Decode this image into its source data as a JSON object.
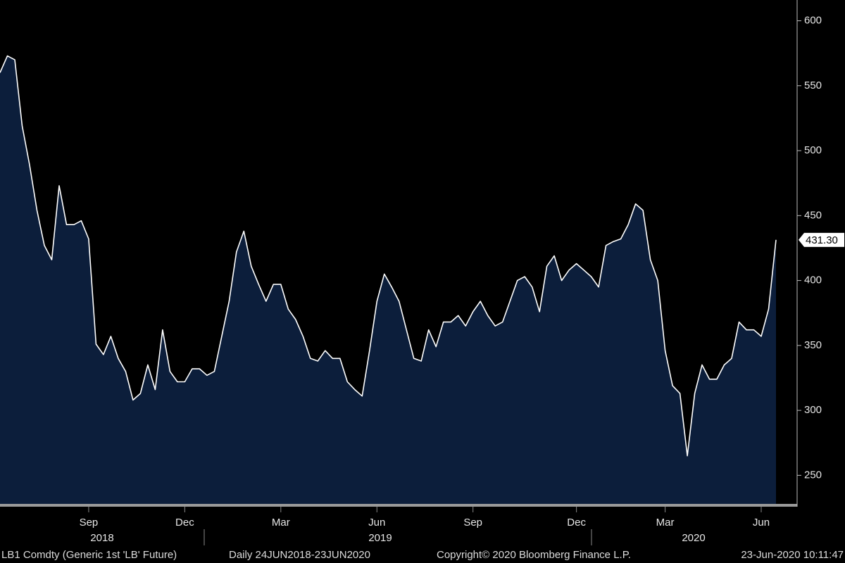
{
  "chart_data": {
    "type": "area",
    "categories": [
      null,
      null,
      null,
      null,
      null,
      null,
      null,
      null,
      null,
      null,
      null,
      null,
      "Sep",
      null,
      null,
      null,
      null,
      null,
      null,
      null,
      null,
      null,
      null,
      null,
      null,
      "Dec",
      null,
      null,
      null,
      null,
      null,
      null,
      null,
      null,
      null,
      null,
      null,
      null,
      "Mar",
      null,
      null,
      null,
      null,
      null,
      null,
      null,
      null,
      null,
      null,
      null,
      null,
      "Jun",
      null,
      null,
      null,
      null,
      null,
      null,
      null,
      null,
      null,
      null,
      null,
      null,
      "Sep",
      null,
      null,
      null,
      null,
      null,
      null,
      null,
      null,
      null,
      null,
      null,
      null,
      null,
      "Dec",
      null,
      null,
      null,
      null,
      null,
      null,
      null,
      null,
      null,
      null,
      null,
      "Mar",
      null,
      null,
      null,
      null,
      null,
      null,
      null,
      null,
      null,
      null,
      null,
      null,
      "Jun",
      null,
      null
    ],
    "values": [
      560,
      573,
      570,
      519,
      489,
      454,
      427,
      416,
      473,
      443,
      443,
      446,
      432,
      351,
      343,
      357,
      340,
      330,
      308,
      313,
      335,
      316,
      362,
      330,
      322,
      322,
      332,
      332,
      327,
      330,
      357,
      384,
      422,
      438,
      411,
      397,
      384,
      397,
      397,
      378,
      370,
      357,
      340,
      338,
      346,
      340,
      340,
      322,
      316,
      311,
      346,
      384,
      405,
      395,
      384,
      362,
      340,
      338,
      362,
      349,
      368,
      368,
      373,
      365,
      376,
      384,
      373,
      365,
      368,
      384,
      400,
      403,
      395,
      376,
      411,
      419,
      400,
      408,
      413,
      408,
      403,
      395,
      427,
      430,
      432,
      443,
      459,
      454,
      416,
      400,
      346,
      319,
      313,
      265,
      313,
      335,
      324,
      324,
      335,
      340,
      368,
      362,
      362,
      357,
      378,
      431.3
    ],
    "years": [
      "2018",
      "2019",
      "2020"
    ],
    "color": "#ffffff",
    "fill_color": "#0c1e3b",
    "ylim": [
      228,
      616
    ],
    "yticks": [
      250,
      300,
      350,
      400,
      450,
      500,
      550,
      600
    ],
    "last_price": {
      "value": 431.3,
      "label": "431.30"
    }
  },
  "footer": {
    "security": "LB1 Comdty (Generic 1st 'LB' Future)",
    "period": "Daily 24JUN2018-23JUN2020",
    "copyright": "Copyright© 2020 Bloomberg Finance L.P.",
    "timestamp": "23-Jun-2020 10:11:47"
  }
}
